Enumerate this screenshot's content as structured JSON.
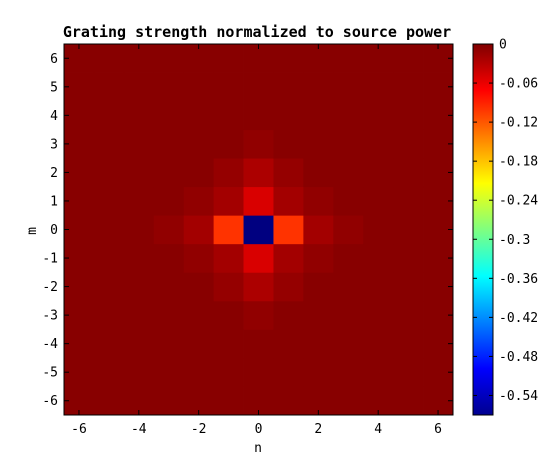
{
  "chart_data": {
    "type": "heatmap",
    "title": "Grating strength normalized to source power",
    "xlabel": "n",
    "ylabel": "m",
    "x_range": [
      -6,
      6
    ],
    "y_range": [
      -6,
      6
    ],
    "x_ticks": [
      "-6",
      "-4",
      "-2",
      "0",
      "2",
      "4",
      "6"
    ],
    "y_ticks": [
      "6",
      "5",
      "4",
      "3",
      "2",
      "1",
      "0",
      "-1",
      "-2",
      "-3",
      "-4",
      "-5",
      "-6"
    ],
    "colorbar": {
      "colormap": "jet",
      "min": -0.57,
      "max": 0,
      "tick_labels": [
        "0",
        "-0.06",
        "-0.12",
        "-0.18",
        "-0.24",
        "-0.3",
        "-0.36",
        "-0.42",
        "-0.48",
        "-0.54"
      ]
    },
    "background_value": -0.005,
    "cells": [
      {
        "n": 0,
        "m": 0,
        "value": -0.57
      },
      {
        "n": -1,
        "m": 0,
        "value": -0.1
      },
      {
        "n": 1,
        "m": 0,
        "value": -0.1
      },
      {
        "n": 0,
        "m": 1,
        "value": -0.05
      },
      {
        "n": 0,
        "m": -1,
        "value": -0.05
      },
      {
        "n": -2,
        "m": 0,
        "value": -0.02
      },
      {
        "n": 2,
        "m": 0,
        "value": -0.02
      },
      {
        "n": 0,
        "m": 2,
        "value": -0.025
      },
      {
        "n": 0,
        "m": -2,
        "value": -0.025
      },
      {
        "n": -1,
        "m": 1,
        "value": -0.02
      },
      {
        "n": 1,
        "m": 1,
        "value": -0.02
      },
      {
        "n": -1,
        "m": -1,
        "value": -0.02
      },
      {
        "n": 1,
        "m": -1,
        "value": -0.02
      },
      {
        "n": -1,
        "m": 2,
        "value": -0.012
      },
      {
        "n": 1,
        "m": 2,
        "value": -0.012
      },
      {
        "n": -1,
        "m": -2,
        "value": -0.012
      },
      {
        "n": 1,
        "m": -2,
        "value": -0.012
      },
      {
        "n": 0,
        "m": 3,
        "value": -0.01
      },
      {
        "n": 0,
        "m": -3,
        "value": -0.01
      },
      {
        "n": -3,
        "m": 0,
        "value": -0.01
      },
      {
        "n": 3,
        "m": 0,
        "value": -0.01
      },
      {
        "n": -2,
        "m": 1,
        "value": -0.01
      },
      {
        "n": 2,
        "m": 1,
        "value": -0.01
      },
      {
        "n": -2,
        "m": -1,
        "value": -0.01
      },
      {
        "n": 2,
        "m": -1,
        "value": -0.01
      }
    ]
  }
}
